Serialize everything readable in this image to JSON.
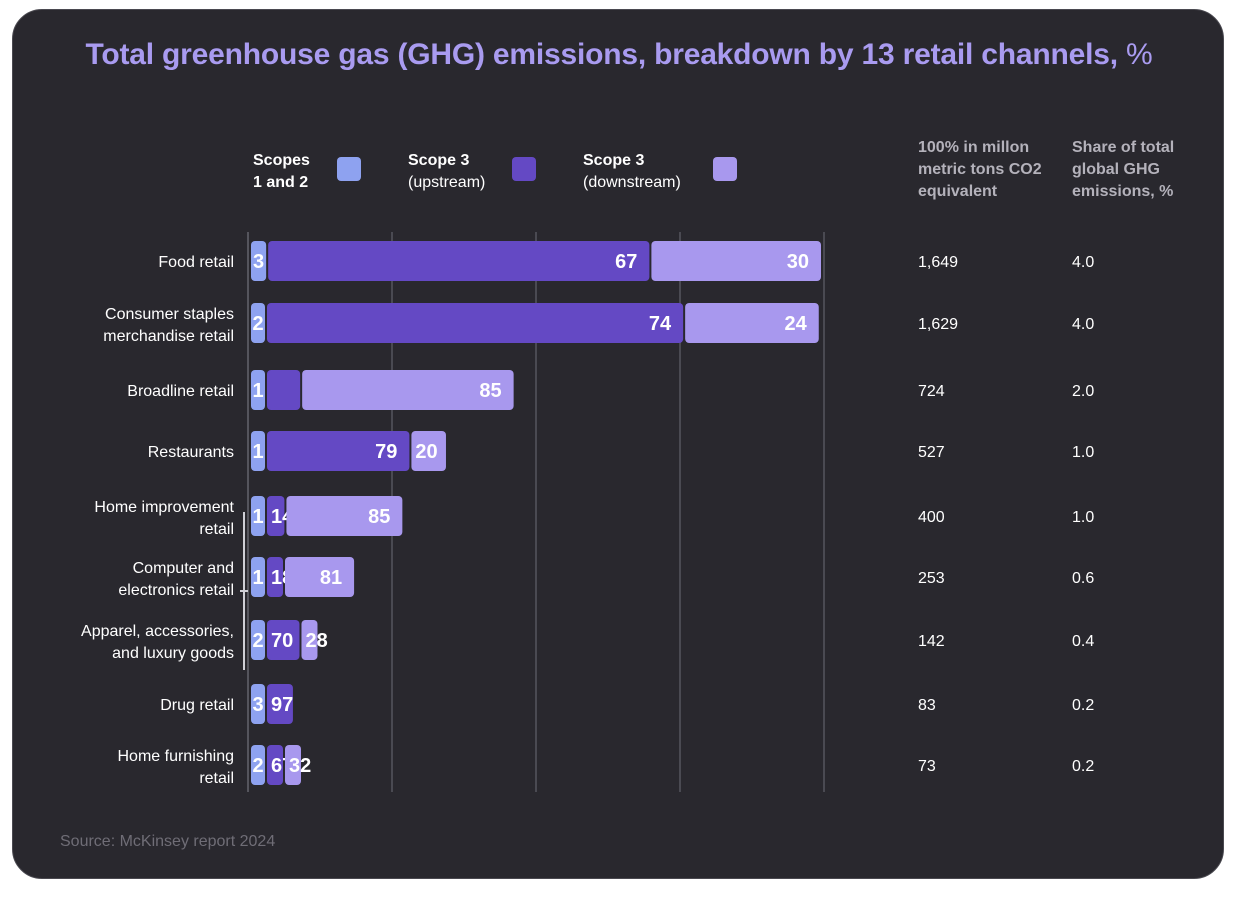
{
  "title": "Total greenhouse gas (GHG) emissions, breakdown by 13 retail channels,",
  "title_unit": "%",
  "legend": [
    {
      "line1": "Scopes",
      "line2": "1 and 2",
      "bold2": true,
      "color": "#8ea2f0"
    },
    {
      "line1": "Scope 3",
      "line2": "(upstream)",
      "bold2": false,
      "color": "#6449c4"
    },
    {
      "line1": "Scope 3",
      "line2": "(downstream)",
      "bold2": false,
      "color": "#a898ee"
    }
  ],
  "columns": {
    "col1": [
      "100% in millon",
      "metric tons CO2",
      "equivalent"
    ],
    "col2": [
      "Share of total",
      "global GHG",
      "emissions, %"
    ]
  },
  "source": "Source: McKinsey report 2024",
  "chart_data": {
    "type": "bar",
    "orientation": "horizontal",
    "stacked": true,
    "title": "Total greenhouse gas (GHG) emissions, breakdown by 13 retail channels, %",
    "grid": true,
    "categories": [
      [
        "Food retail"
      ],
      [
        "Consumer staples",
        "merchandise retail"
      ],
      [
        "Broadline retail"
      ],
      [
        "Restaurants"
      ],
      [
        "Home improvement",
        "retail"
      ],
      [
        "Computer and",
        "electronics retail"
      ],
      [
        "Apparel, accessories,",
        "and luxury goods"
      ],
      [
        "Drug retail"
      ],
      [
        "Home furnishing",
        "retail"
      ]
    ],
    "series": [
      {
        "name": "Scopes 1 and 2",
        "color": "#8ea2f0",
        "values": [
          3,
          2,
          1,
          1,
          1,
          1,
          2,
          3,
          2
        ],
        "labels": [
          "3",
          "2",
          "1",
          "1",
          "1",
          "1",
          "2",
          "3",
          "2"
        ]
      },
      {
        "name": "Scope 3 (upstream)",
        "color": "#6449c4",
        "values": [
          67,
          74,
          14,
          79,
          14,
          18,
          70,
          97,
          67
        ],
        "labels": [
          "67",
          "74",
          "",
          "79",
          "14",
          "18",
          "70",
          "97",
          "67"
        ]
      },
      {
        "name": "Scope 3 (downstream)",
        "color": "#a898ee",
        "values": [
          30,
          24,
          85,
          20,
          85,
          81,
          28,
          0,
          32
        ],
        "labels": [
          "30",
          "24",
          "85",
          "20",
          "85",
          "81",
          "28",
          "",
          "32"
        ]
      }
    ],
    "table": {
      "mt_co2e": [
        "1,649",
        "1,629",
        "724",
        "527",
        "400",
        "253",
        "142",
        "83",
        "73"
      ],
      "share_global": [
        "4.0",
        "4.0",
        "2.0",
        "1.0",
        "1.0",
        "0.6",
        "0.4",
        "0.2",
        "0.2"
      ]
    }
  }
}
